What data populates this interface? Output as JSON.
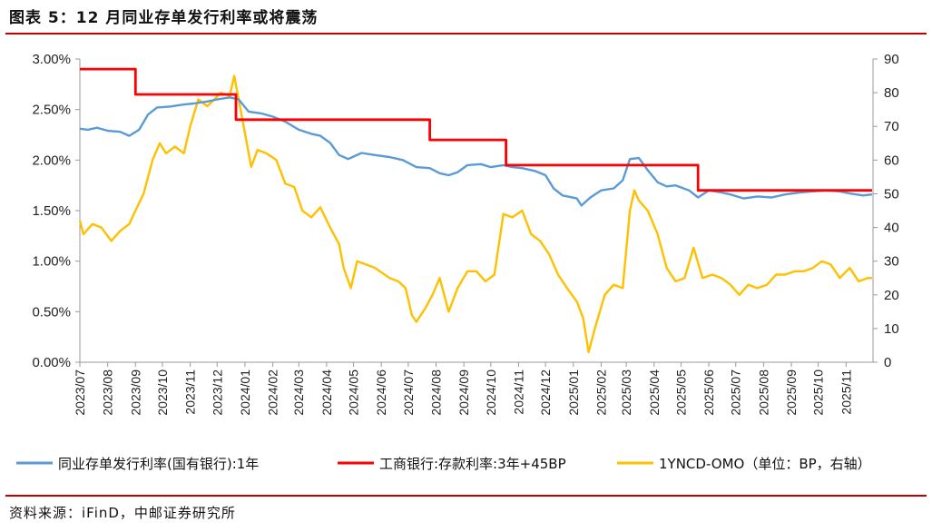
{
  "header": {
    "title": "图表 5：12 月同业存单发行利率或将震荡"
  },
  "footer": {
    "source": "资料来源：iFinD，中邮证券研究所"
  },
  "chart_data": {
    "type": "line",
    "x_ticks": [
      "2023/07",
      "2023/08",
      "2023/09",
      "2023/10",
      "2023/11",
      "2023/12",
      "2024/01",
      "2024/02",
      "2024/03",
      "2024/04",
      "2024/05",
      "2024/06",
      "2024/07",
      "2024/08",
      "2024/09",
      "2024/10",
      "2024/11",
      "2024/12",
      "2025/01",
      "2025/02",
      "2025/03",
      "2025/04",
      "2025/05",
      "2025/06",
      "2025/07",
      "2025/08",
      "2025/09",
      "2025/10",
      "2025/11"
    ],
    "y_left": {
      "ticks": [
        "0.00%",
        "0.50%",
        "1.00%",
        "1.50%",
        "2.00%",
        "2.50%",
        "3.00%"
      ],
      "range": [
        0,
        3.0
      ]
    },
    "y_right": {
      "ticks": [
        "0",
        "10",
        "20",
        "30",
        "40",
        "50",
        "60",
        "70",
        "80",
        "90"
      ],
      "range": [
        0,
        90
      ]
    },
    "grid": false,
    "legend_position": "bottom",
    "series": [
      {
        "name": "同业存单发行利率(国有银行):1年",
        "axis": "left",
        "color": "#5b9bd5",
        "points": [
          [
            "2023/07/01",
            2.31
          ],
          [
            "2023/07/10",
            2.3
          ],
          [
            "2023/07/20",
            2.32
          ],
          [
            "2023/08/01",
            2.29
          ],
          [
            "2023/08/15",
            2.28
          ],
          [
            "2023/08/25",
            2.24
          ],
          [
            "2023/09/05",
            2.3
          ],
          [
            "2023/09/15",
            2.45
          ],
          [
            "2023/09/25",
            2.52
          ],
          [
            "2023/10/10",
            2.53
          ],
          [
            "2023/10/25",
            2.55
          ],
          [
            "2023/11/05",
            2.56
          ],
          [
            "2023/11/20",
            2.58
          ],
          [
            "2023/12/01",
            2.6
          ],
          [
            "2023/12/15",
            2.62
          ],
          [
            "2023/12/25",
            2.6
          ],
          [
            "2024/01/05",
            2.48
          ],
          [
            "2024/01/20",
            2.46
          ],
          [
            "2024/02/01",
            2.43
          ],
          [
            "2024/02/15",
            2.38
          ],
          [
            "2024/03/01",
            2.3
          ],
          [
            "2024/03/15",
            2.26
          ],
          [
            "2024/03/25",
            2.24
          ],
          [
            "2024/04/05",
            2.17
          ],
          [
            "2024/04/15",
            2.05
          ],
          [
            "2024/04/25",
            2.01
          ],
          [
            "2024/05/10",
            2.07
          ],
          [
            "2024/05/25",
            2.05
          ],
          [
            "2024/06/10",
            2.03
          ],
          [
            "2024/06/25",
            2.0
          ],
          [
            "2024/07/10",
            1.93
          ],
          [
            "2024/07/25",
            1.92
          ],
          [
            "2024/08/05",
            1.87
          ],
          [
            "2024/08/15",
            1.85
          ],
          [
            "2024/08/25",
            1.88
          ],
          [
            "2024/09/05",
            1.95
          ],
          [
            "2024/09/20",
            1.96
          ],
          [
            "2024/10/01",
            1.93
          ],
          [
            "2024/10/15",
            1.95
          ],
          [
            "2024/10/25",
            1.93
          ],
          [
            "2024/11/05",
            1.92
          ],
          [
            "2024/11/20",
            1.89
          ],
          [
            "2024/12/01",
            1.85
          ],
          [
            "2024/12/10",
            1.72
          ],
          [
            "2024/12/20",
            1.65
          ],
          [
            "2025/01/05",
            1.62
          ],
          [
            "2025/01/10",
            1.55
          ],
          [
            "2025/01/20",
            1.63
          ],
          [
            "2025/02/01",
            1.7
          ],
          [
            "2025/02/15",
            1.72
          ],
          [
            "2025/02/25",
            1.8
          ],
          [
            "2025/03/05",
            2.01
          ],
          [
            "2025/03/15",
            2.02
          ],
          [
            "2025/03/25",
            1.9
          ],
          [
            "2025/04/05",
            1.78
          ],
          [
            "2025/04/15",
            1.74
          ],
          [
            "2025/04/25",
            1.75
          ],
          [
            "2025/05/10",
            1.7
          ],
          [
            "2025/05/20",
            1.63
          ],
          [
            "2025/06/01",
            1.7
          ],
          [
            "2025/06/15",
            1.68
          ],
          [
            "2025/06/25",
            1.66
          ],
          [
            "2025/07/10",
            1.62
          ],
          [
            "2025/07/25",
            1.64
          ],
          [
            "2025/08/10",
            1.63
          ],
          [
            "2025/08/25",
            1.66
          ],
          [
            "2025/09/10",
            1.68
          ],
          [
            "2025/09/25",
            1.69
          ],
          [
            "2025/10/10",
            1.7
          ],
          [
            "2025/10/25",
            1.69
          ],
          [
            "2025/11/05",
            1.67
          ],
          [
            "2025/11/20",
            1.65
          ],
          [
            "2025/11/30",
            1.66
          ]
        ]
      },
      {
        "name": "工商银行:存款利率:3年+45BP",
        "axis": "left",
        "color": "#ff0000",
        "step": true,
        "points": [
          [
            "2023/07/01",
            2.9
          ],
          [
            "2023/09/01",
            2.9
          ],
          [
            "2023/09/01",
            2.65
          ],
          [
            "2023/12/22",
            2.65
          ],
          [
            "2023/12/22",
            2.4
          ],
          [
            "2024/07/25",
            2.4
          ],
          [
            "2024/07/25",
            2.2
          ],
          [
            "2024/10/18",
            2.2
          ],
          [
            "2024/10/18",
            1.95
          ],
          [
            "2025/05/20",
            1.95
          ],
          [
            "2025/05/20",
            1.7
          ],
          [
            "2025/11/30",
            1.7
          ]
        ]
      },
      {
        "name": "1YNCD-OMO（单位：BP，右轴）",
        "axis": "right",
        "color": "#ffc000",
        "points": [
          [
            "2023/07/01",
            42
          ],
          [
            "2023/07/05",
            38
          ],
          [
            "2023/07/15",
            41
          ],
          [
            "2023/07/25",
            40
          ],
          [
            "2023/08/05",
            36
          ],
          [
            "2023/08/15",
            39
          ],
          [
            "2023/08/25",
            41
          ],
          [
            "2023/09/01",
            45
          ],
          [
            "2023/09/10",
            50
          ],
          [
            "2023/09/20",
            60
          ],
          [
            "2023/09/28",
            65
          ],
          [
            "2023/10/05",
            62
          ],
          [
            "2023/10/15",
            64
          ],
          [
            "2023/10/25",
            62
          ],
          [
            "2023/11/01",
            70
          ],
          [
            "2023/11/10",
            78
          ],
          [
            "2023/11/20",
            76
          ],
          [
            "2023/11/28",
            78
          ],
          [
            "2023/12/05",
            80
          ],
          [
            "2023/12/15",
            79
          ],
          [
            "2023/12/20",
            85
          ],
          [
            "2023/12/25",
            78
          ],
          [
            "2024/01/01",
            68
          ],
          [
            "2024/01/08",
            58
          ],
          [
            "2024/01/15",
            63
          ],
          [
            "2024/01/25",
            62
          ],
          [
            "2024/02/05",
            60
          ],
          [
            "2024/02/15",
            53
          ],
          [
            "2024/02/25",
            52
          ],
          [
            "2024/03/05",
            45
          ],
          [
            "2024/03/15",
            43
          ],
          [
            "2024/03/25",
            46
          ],
          [
            "2024/04/05",
            40
          ],
          [
            "2024/04/15",
            35
          ],
          [
            "2024/04/20",
            28
          ],
          [
            "2024/04/28",
            22
          ],
          [
            "2024/05/05",
            30
          ],
          [
            "2024/05/15",
            29
          ],
          [
            "2024/05/25",
            28
          ],
          [
            "2024/06/10",
            25
          ],
          [
            "2024/06/20",
            24
          ],
          [
            "2024/06/28",
            22
          ],
          [
            "2024/07/05",
            14
          ],
          [
            "2024/07/10",
            12
          ],
          [
            "2024/07/20",
            16
          ],
          [
            "2024/07/28",
            20
          ],
          [
            "2024/08/05",
            25
          ],
          [
            "2024/08/15",
            15
          ],
          [
            "2024/08/25",
            22
          ],
          [
            "2024/09/05",
            27
          ],
          [
            "2024/09/15",
            27
          ],
          [
            "2024/09/25",
            24
          ],
          [
            "2024/10/05",
            26
          ],
          [
            "2024/10/15",
            44
          ],
          [
            "2024/10/25",
            43
          ],
          [
            "2024/11/05",
            45
          ],
          [
            "2024/11/15",
            38
          ],
          [
            "2024/11/25",
            36
          ],
          [
            "2024/12/05",
            32
          ],
          [
            "2024/12/15",
            26
          ],
          [
            "2024/12/25",
            22
          ],
          [
            "2025/01/05",
            18
          ],
          [
            "2025/01/12",
            13
          ],
          [
            "2025/01/18",
            3
          ],
          [
            "2025/01/25",
            10
          ],
          [
            "2025/02/05",
            20
          ],
          [
            "2025/02/15",
            23
          ],
          [
            "2025/02/25",
            22
          ],
          [
            "2025/03/05",
            45
          ],
          [
            "2025/03/10",
            51
          ],
          [
            "2025/03/15",
            48
          ],
          [
            "2025/03/25",
            45
          ],
          [
            "2025/04/05",
            38
          ],
          [
            "2025/04/15",
            28
          ],
          [
            "2025/04/25",
            24
          ],
          [
            "2025/05/05",
            25
          ],
          [
            "2025/05/15",
            34
          ],
          [
            "2025/05/25",
            25
          ],
          [
            "2025/06/05",
            26
          ],
          [
            "2025/06/15",
            25
          ],
          [
            "2025/06/25",
            23
          ],
          [
            "2025/07/05",
            20
          ],
          [
            "2025/07/15",
            23
          ],
          [
            "2025/07/25",
            22
          ],
          [
            "2025/08/05",
            23
          ],
          [
            "2025/08/15",
            26
          ],
          [
            "2025/08/25",
            26
          ],
          [
            "2025/09/05",
            27
          ],
          [
            "2025/09/15",
            27
          ],
          [
            "2025/09/25",
            28
          ],
          [
            "2025/10/05",
            30
          ],
          [
            "2025/10/15",
            29
          ],
          [
            "2025/10/25",
            25
          ],
          [
            "2025/11/05",
            28
          ],
          [
            "2025/11/15",
            24
          ],
          [
            "2025/11/25",
            25
          ],
          [
            "2025/11/30",
            25
          ]
        ]
      }
    ]
  }
}
